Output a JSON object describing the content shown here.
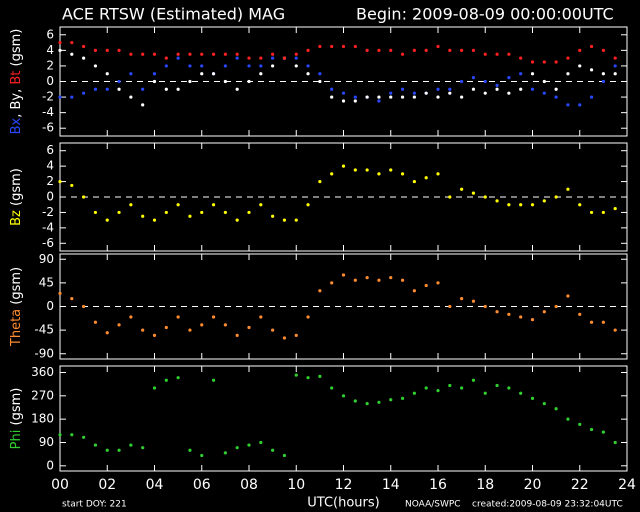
{
  "header": {
    "title": "ACE RTSW (Estimated) MAG",
    "begin": "Begin: 2009-08-09 00:00:00UTC"
  },
  "footer": {
    "start": "start DOY:  221",
    "source": "NOAA/SWPC",
    "created": "created:2009-08-09 23:32:04UTC"
  },
  "chart_data": [
    {
      "type": "scatter",
      "ylabel": "Bx, By, Bt (gsm)",
      "xlim": [
        0,
        24
      ],
      "ylim": [
        -7,
        7
      ],
      "yticks": [
        6,
        4,
        2,
        0,
        -2,
        -4,
        -6
      ],
      "zero_line": true,
      "x": [
        0,
        0.5,
        1,
        1.5,
        2,
        2.5,
        3,
        3.5,
        4,
        4.5,
        5,
        5.5,
        6,
        6.5,
        7,
        7.5,
        8,
        8.5,
        9,
        9.5,
        10,
        10.5,
        11,
        11.5,
        12,
        12.5,
        13,
        13.5,
        14,
        14.5,
        15,
        15.5,
        16,
        16.5,
        17,
        17.5,
        18,
        18.5,
        19,
        19.5,
        20,
        20.5,
        21,
        21.5,
        22,
        22.5,
        23,
        23.5
      ],
      "series": [
        {
          "name": "Bx",
          "color": "#2848ff",
          "values": [
            -2,
            -2,
            -1.5,
            -1,
            -1,
            0,
            1,
            -1,
            1,
            2,
            3,
            2,
            2,
            1,
            2,
            3,
            2,
            2,
            3,
            3,
            3,
            2,
            1,
            -1,
            -1.5,
            -2,
            -2,
            -2.5,
            -1.5,
            -1,
            -1.5,
            -1.5,
            -1,
            -1,
            0,
            0.5,
            0,
            -0.5,
            0.5,
            1,
            -1,
            -1.5,
            -2,
            -3,
            -3,
            -2,
            0,
            2
          ]
        },
        {
          "name": "By",
          "color": "#ffffff",
          "values": [
            4,
            3.5,
            3,
            2,
            1,
            -1,
            -2,
            -3,
            0,
            -1,
            -1,
            0,
            1,
            1,
            0,
            -1,
            0,
            1,
            2,
            3,
            2,
            1,
            0,
            -2,
            -2.5,
            -2.5,
            -2,
            -2,
            -2,
            -2,
            -2,
            -1.5,
            -2,
            -1.5,
            -2,
            -1,
            -1.5,
            -1,
            -1.5,
            -1,
            1,
            0,
            -1,
            1,
            2,
            1.5,
            1,
            1
          ]
        },
        {
          "name": "Bt",
          "color": "#ff2020",
          "values": [
            5,
            5,
            4.5,
            4,
            4,
            4,
            3.5,
            3.5,
            3.5,
            3,
            3.5,
            3.5,
            3.5,
            3.5,
            3.5,
            3.5,
            3,
            3,
            3.5,
            3,
            3.5,
            4,
            4.5,
            4.5,
            4.5,
            4.5,
            4,
            4,
            4,
            3.5,
            4,
            4,
            4.5,
            4,
            4,
            4,
            3.5,
            3.5,
            3.5,
            3,
            2.5,
            2.5,
            2.5,
            3,
            4,
            4.5,
            4,
            3
          ]
        }
      ]
    },
    {
      "type": "scatter",
      "ylabel": "Bz  (gsm)",
      "xlim": [
        0,
        24
      ],
      "ylim": [
        -7,
        7
      ],
      "yticks": [
        6,
        4,
        2,
        0,
        -2,
        -4,
        -6
      ],
      "zero_line": true,
      "x": [
        0,
        0.5,
        1,
        1.5,
        2,
        2.5,
        3,
        3.5,
        4,
        4.5,
        5,
        5.5,
        6,
        6.5,
        7,
        7.5,
        8,
        8.5,
        9,
        9.5,
        10,
        10.5,
        11,
        11.5,
        12,
        12.5,
        13,
        13.5,
        14,
        14.5,
        15,
        15.5,
        16,
        16.5,
        17,
        17.5,
        18,
        18.5,
        19,
        19.5,
        20,
        20.5,
        21,
        21.5,
        22,
        22.5,
        23,
        23.5
      ],
      "series": [
        {
          "name": "Bz",
          "color": "#ffff00",
          "values": [
            2,
            1.5,
            0,
            -2,
            -3,
            -2,
            -1,
            -2.5,
            -3,
            -2,
            -1,
            -2.5,
            -2,
            -1,
            -2,
            -3,
            -2,
            -1,
            -2.5,
            -3,
            -3,
            -1,
            2,
            3,
            4,
            3.5,
            3.5,
            3,
            3.5,
            3,
            2,
            2.5,
            3,
            0,
            1,
            0.5,
            0,
            -0.5,
            -1,
            -1,
            -1,
            -0.5,
            0,
            1,
            -1,
            -2,
            -2,
            -1.5
          ]
        }
      ]
    },
    {
      "type": "scatter",
      "ylabel": "Theta  (gsm)",
      "xlim": [
        0,
        24
      ],
      "ylim": [
        -100,
        100
      ],
      "yticks": [
        90,
        45,
        0,
        -45,
        -90
      ],
      "zero_line": true,
      "x": [
        0,
        0.5,
        1,
        1.5,
        2,
        2.5,
        3,
        3.5,
        4,
        4.5,
        5,
        5.5,
        6,
        6.5,
        7,
        7.5,
        8,
        8.5,
        9,
        9.5,
        10,
        10.5,
        11,
        11.5,
        12,
        12.5,
        13,
        13.5,
        14,
        14.5,
        15,
        15.5,
        16,
        16.5,
        17,
        17.5,
        18,
        18.5,
        19,
        19.5,
        20,
        20.5,
        21,
        21.5,
        22,
        22.5,
        23,
        23.5
      ],
      "series": [
        {
          "name": "Theta",
          "color": "#ff8c30",
          "values": [
            25,
            15,
            0,
            -30,
            -50,
            -35,
            -20,
            -45,
            -55,
            -40,
            -20,
            -45,
            -35,
            -20,
            -35,
            -55,
            -40,
            -20,
            -45,
            -60,
            -55,
            -20,
            30,
            45,
            60,
            50,
            55,
            50,
            55,
            50,
            30,
            40,
            45,
            0,
            15,
            10,
            0,
            -10,
            -15,
            -20,
            -25,
            -10,
            0,
            20,
            -15,
            -30,
            -30,
            -45
          ]
        }
      ]
    },
    {
      "type": "scatter",
      "ylabel": "Phi  (gsm)",
      "xlabel": "UTC(hours)",
      "xlim": [
        0,
        24
      ],
      "ylim": [
        -20,
        385
      ],
      "yticks": [
        360,
        270,
        180,
        90,
        0
      ],
      "zero_line": false,
      "xticks": [
        {
          "value": 0,
          "label": "00"
        },
        {
          "value": 2,
          "label": "02"
        },
        {
          "value": 4,
          "label": "04"
        },
        {
          "value": 6,
          "label": "06"
        },
        {
          "value": 8,
          "label": "08"
        },
        {
          "value": 10,
          "label": "10"
        },
        12,
        14,
        16,
        18,
        20,
        22,
        24
      ],
      "x": [
        0,
        0.5,
        1,
        1.5,
        2,
        2.5,
        3,
        3.5,
        4,
        4.5,
        5,
        5.5,
        6,
        6.5,
        7,
        7.5,
        8,
        8.5,
        9,
        9.5,
        10,
        10.5,
        11,
        11.5,
        12,
        12.5,
        13,
        13.5,
        14,
        14.5,
        15,
        15.5,
        16,
        16.5,
        17,
        17.5,
        18,
        18.5,
        19,
        19.5,
        20,
        20.5,
        21,
        21.5,
        22,
        22.5,
        23,
        23.5
      ],
      "series": [
        {
          "name": "Phi",
          "color": "#30d030",
          "values": [
            120,
            120,
            110,
            80,
            60,
            60,
            80,
            70,
            300,
            330,
            340,
            60,
            40,
            330,
            50,
            70,
            80,
            90,
            60,
            40,
            350,
            340,
            345,
            300,
            270,
            250,
            240,
            245,
            255,
            260,
            280,
            300,
            290,
            310,
            300,
            330,
            280,
            310,
            300,
            280,
            260,
            240,
            220,
            180,
            160,
            140,
            130,
            90
          ]
        }
      ]
    }
  ]
}
